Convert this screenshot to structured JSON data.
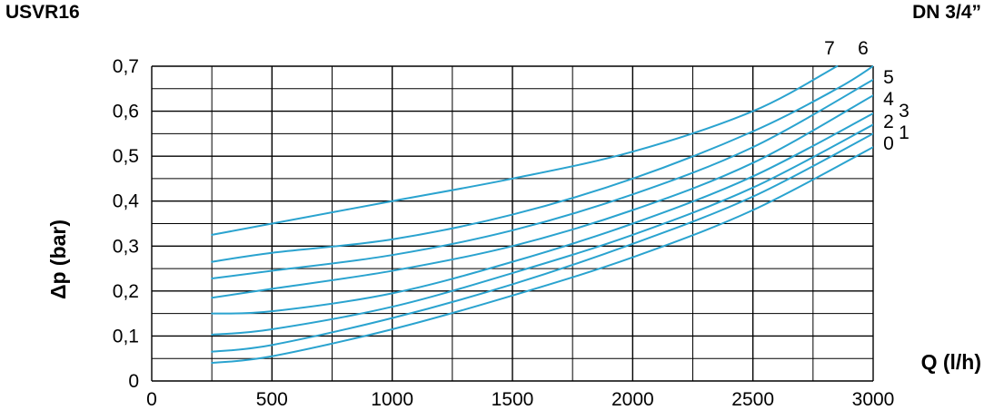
{
  "header": {
    "model": "USVR16",
    "size": "DN 3/4”"
  },
  "chart_data": {
    "type": "line",
    "xlabel": "Q (l/h)",
    "ylabel": "Δp (bar)",
    "xlim": [
      0,
      3000
    ],
    "ylim": [
      0,
      0.7
    ],
    "x_ticks": [
      0,
      500,
      1000,
      1500,
      2000,
      2500,
      3000
    ],
    "x_tick_labels": [
      "0",
      "500",
      "1000",
      "1500",
      "2000",
      "2500",
      "3000"
    ],
    "y_ticks": [
      0,
      0.1,
      0.2,
      0.3,
      0.4,
      0.5,
      0.6,
      0.7
    ],
    "y_tick_labels": [
      "0",
      "0,1",
      "0,2",
      "0,3",
      "0,4",
      "0,5",
      "0,6",
      "0,7"
    ],
    "grid": true,
    "line_color": "#2aa3cf",
    "series": [
      {
        "name": "0",
        "x": [
          250,
          500,
          1000,
          1500,
          2000,
          2500,
          3000
        ],
        "y": [
          0.04,
          0.055,
          0.115,
          0.19,
          0.275,
          0.38,
          0.52
        ]
      },
      {
        "name": "1",
        "x": [
          250,
          500,
          1000,
          1500,
          2000,
          2500,
          3000
        ],
        "y": [
          0.065,
          0.08,
          0.14,
          0.215,
          0.305,
          0.41,
          0.55
        ]
      },
      {
        "name": "2",
        "x": [
          250,
          500,
          1000,
          1500,
          2000,
          2500,
          3000
        ],
        "y": [
          0.103,
          0.115,
          0.165,
          0.24,
          0.325,
          0.43,
          0.57
        ]
      },
      {
        "name": "3",
        "x": [
          250,
          500,
          1000,
          1500,
          2000,
          2500,
          3000
        ],
        "y": [
          0.15,
          0.155,
          0.195,
          0.265,
          0.35,
          0.455,
          0.595
        ]
      },
      {
        "name": "4",
        "x": [
          250,
          500,
          1000,
          1500,
          2000,
          2500,
          3000
        ],
        "y": [
          0.185,
          0.205,
          0.245,
          0.3,
          0.38,
          0.485,
          0.635
        ]
      },
      {
        "name": "5",
        "x": [
          250,
          500,
          1000,
          1500,
          2000,
          2500,
          3000
        ],
        "y": [
          0.228,
          0.245,
          0.28,
          0.335,
          0.415,
          0.52,
          0.67
        ]
      },
      {
        "name": "6",
        "x": [
          250,
          500,
          1000,
          1500,
          2000,
          2500,
          2850,
          3000
        ],
        "y": [
          0.265,
          0.285,
          0.315,
          0.37,
          0.45,
          0.555,
          0.65,
          0.7
        ]
      },
      {
        "name": "7",
        "x": [
          250,
          500,
          1000,
          1500,
          2000,
          2500,
          2850
        ],
        "y": [
          0.325,
          0.35,
          0.4,
          0.45,
          0.51,
          0.6,
          0.7
        ]
      }
    ]
  }
}
